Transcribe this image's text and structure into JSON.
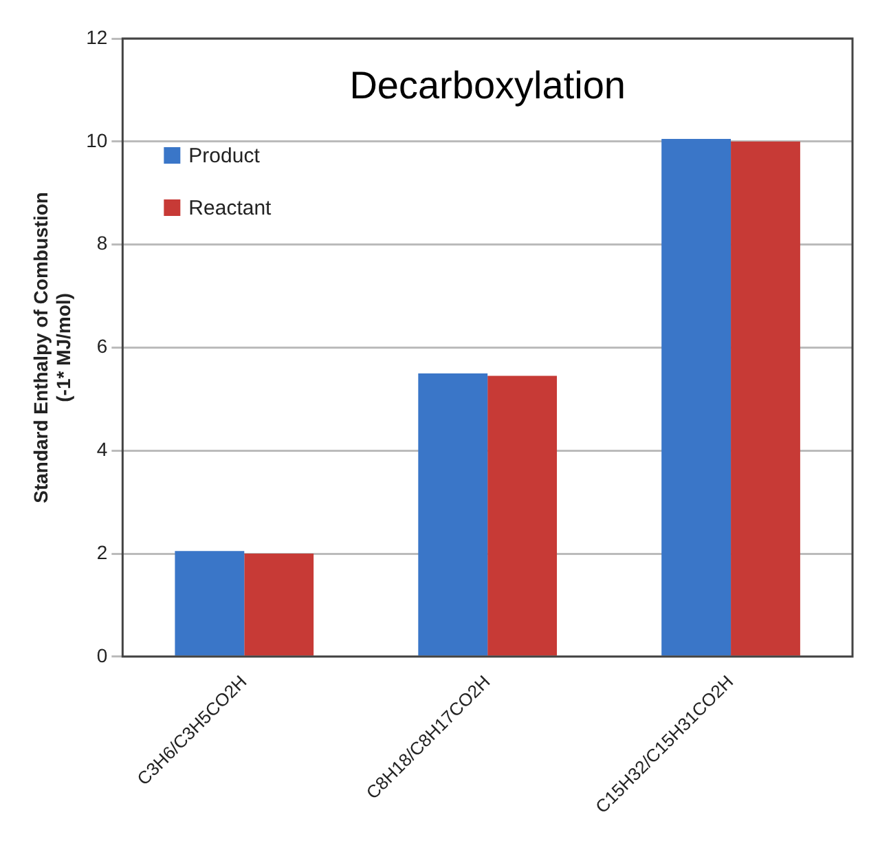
{
  "chart_data": {
    "type": "bar",
    "title": "Decarboxylation",
    "ylabel": "Standard Enthalpy of Combustion\n(-1* MJ/mol)",
    "categories": [
      "C3H6/C3H5CO2H",
      "C8H18/C8H17CO2H",
      "C15H32/C15H31CO2H"
    ],
    "series": [
      {
        "name": "Product",
        "color": "#3a76c8",
        "values": [
          2.05,
          5.5,
          10.05
        ]
      },
      {
        "name": "Reactant",
        "color": "#c73a36",
        "values": [
          2.0,
          5.45,
          10.0
        ]
      }
    ],
    "ylim": [
      0,
      12
    ],
    "yticks": [
      0,
      2,
      4,
      6,
      8,
      10,
      12
    ],
    "grid": "y",
    "legend": "top left"
  }
}
